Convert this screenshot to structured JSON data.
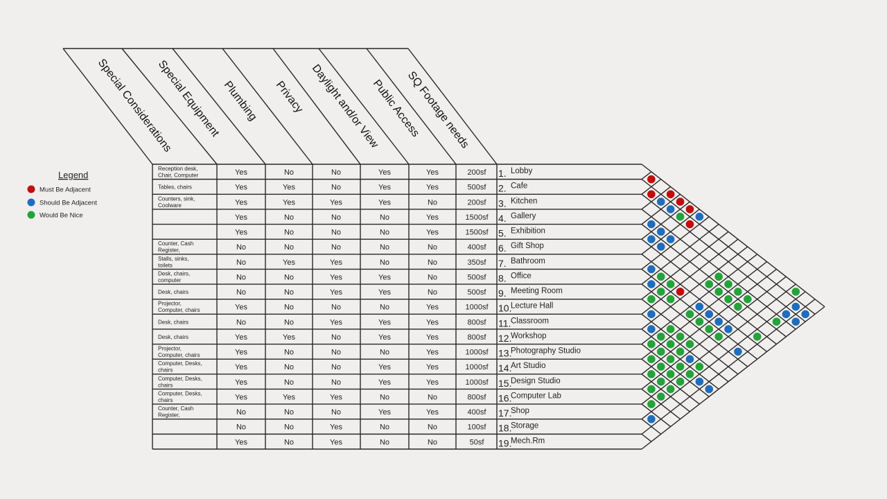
{
  "legend": {
    "title": "Legend",
    "items": [
      {
        "label": "Must Be Adjacent",
        "key": "must",
        "color": "#c00d0d"
      },
      {
        "label": "Should Be Adjacent",
        "key": "should",
        "color": "#1f6dbd"
      },
      {
        "label": "Would Be Nice",
        "key": "nice",
        "color": "#23a33a"
      }
    ]
  },
  "headers": [
    "Special Considerations",
    "Special Equipment",
    "Plumbing",
    "Privacy",
    "Daylight and/or View",
    "Public Access",
    "SQ Footage needs"
  ],
  "rows": [
    {
      "num": "1.",
      "name": "Lobby",
      "special": [
        "Reception desk,",
        "Chair, Computer"
      ],
      "values": [
        "Yes",
        "No",
        "No",
        "Yes",
        "Yes"
      ],
      "sqft": "200sf"
    },
    {
      "num": "2.",
      "name": "Cafe",
      "special": [
        "Tables, chairs"
      ],
      "values": [
        "Yes",
        "Yes",
        "No",
        "Yes",
        "Yes"
      ],
      "sqft": "500sf"
    },
    {
      "num": "3.",
      "name": "Kitchen",
      "special": [
        "Counters, sink,",
        "Coolware"
      ],
      "values": [
        "Yes",
        "Yes",
        "Yes",
        "Yes",
        "No"
      ],
      "sqft": "200sf"
    },
    {
      "num": "4.",
      "name": "Gallery",
      "special": [],
      "values": [
        "Yes",
        "No",
        "No",
        "No",
        "Yes"
      ],
      "sqft": "1500sf"
    },
    {
      "num": "5.",
      "name": "Exhibition",
      "special": [],
      "values": [
        "Yes",
        "No",
        "No",
        "No",
        "Yes"
      ],
      "sqft": "1500sf"
    },
    {
      "num": "6.",
      "name": "Gift Shop",
      "special": [
        "Counter, Cash",
        "Register,"
      ],
      "values": [
        "No",
        "No",
        "No",
        "No",
        "No"
      ],
      "sqft": "400sf"
    },
    {
      "num": "7.",
      "name": "Bathroom",
      "special": [
        "Stalls, sinks,",
        "toilets"
      ],
      "values": [
        "No",
        "Yes",
        "Yes",
        "No",
        "No"
      ],
      "sqft": "350sf"
    },
    {
      "num": "8.",
      "name": "Office",
      "special": [
        "Desk, chairs,",
        "computer"
      ],
      "values": [
        "No",
        "No",
        "Yes",
        "Yes",
        "No"
      ],
      "sqft": "500sf"
    },
    {
      "num": "9.",
      "name": "Meeting Room",
      "special": [
        "Desk, chairs"
      ],
      "values": [
        "No",
        "No",
        "Yes",
        "Yes",
        "No"
      ],
      "sqft": "500sf"
    },
    {
      "num": "10.",
      "name": "Lecture Hall",
      "special": [
        "Projector,",
        "Computer, chairs"
      ],
      "values": [
        "Yes",
        "No",
        "No",
        "No",
        "Yes"
      ],
      "sqft": "1000sf"
    },
    {
      "num": "11.",
      "name": "Classroom",
      "special": [
        "Desk, chairs"
      ],
      "values": [
        "No",
        "No",
        "Yes",
        "Yes",
        "Yes"
      ],
      "sqft": "800sf"
    },
    {
      "num": "12.",
      "name": "Workshop",
      "special": [
        "Desk, chairs"
      ],
      "values": [
        "Yes",
        "Yes",
        "No",
        "Yes",
        "Yes"
      ],
      "sqft": "800sf"
    },
    {
      "num": "13.",
      "name": "Photography Studio",
      "special": [
        "Projector,",
        "Computer, chairs"
      ],
      "values": [
        "Yes",
        "No",
        "No",
        "No",
        "Yes"
      ],
      "sqft": "1000sf"
    },
    {
      "num": "14.",
      "name": "Art Studio",
      "special": [
        "Computer, Desks,",
        "chairs"
      ],
      "values": [
        "Yes",
        "No",
        "No",
        "Yes",
        "Yes"
      ],
      "sqft": "1000sf"
    },
    {
      "num": "15.",
      "name": "Design Studio",
      "special": [
        "Computer, Desks,",
        "chairs"
      ],
      "values": [
        "Yes",
        "No",
        "No",
        "Yes",
        "Yes"
      ],
      "sqft": "1000sf"
    },
    {
      "num": "16.",
      "name": "Computer Lab",
      "special": [
        "Computer, Desks,",
        "chairs"
      ],
      "values": [
        "Yes",
        "Yes",
        "Yes",
        "No",
        "No"
      ],
      "sqft": "800sf"
    },
    {
      "num": "17.",
      "name": "Shop",
      "special": [
        "Counter, Cash",
        "Register,"
      ],
      "values": [
        "No",
        "No",
        "No",
        "Yes",
        "Yes"
      ],
      "sqft": "400sf"
    },
    {
      "num": "18.",
      "name": "Storage",
      "special": [],
      "values": [
        "No",
        "No",
        "Yes",
        "No",
        "No"
      ],
      "sqft": "100sf"
    },
    {
      "num": "19.",
      "name": "Mech.Rm",
      "special": [],
      "values": [
        "Yes",
        "No",
        "Yes",
        "No",
        "No"
      ],
      "sqft": "50sf"
    }
  ],
  "adjacency": [
    [
      1,
      2,
      "must"
    ],
    [
      2,
      3,
      "must"
    ],
    [
      1,
      4,
      "must"
    ],
    [
      2,
      4,
      "should"
    ],
    [
      1,
      5,
      "must"
    ],
    [
      2,
      5,
      "should"
    ],
    [
      1,
      6,
      "must"
    ],
    [
      2,
      6,
      "nice"
    ],
    [
      1,
      7,
      "should"
    ],
    [
      4,
      5,
      "should"
    ],
    [
      2,
      7,
      "must"
    ],
    [
      4,
      6,
      "should"
    ],
    [
      5,
      6,
      "should"
    ],
    [
      4,
      7,
      "should"
    ],
    [
      5,
      7,
      "should"
    ],
    [
      7,
      8,
      "should"
    ],
    [
      7,
      9,
      "nice"
    ],
    [
      8,
      9,
      "should"
    ],
    [
      7,
      10,
      "nice"
    ],
    [
      4,
      12,
      "nice"
    ],
    [
      5,
      12,
      "nice"
    ],
    [
      4,
      13,
      "nice"
    ],
    [
      8,
      10,
      "nice"
    ],
    [
      7,
      11,
      "must"
    ],
    [
      5,
      13,
      "nice"
    ],
    [
      4,
      14,
      "nice"
    ],
    [
      1,
      17,
      "nice"
    ],
    [
      9,
      10,
      "nice"
    ],
    [
      8,
      11,
      "nice"
    ],
    [
      5,
      14,
      "nice"
    ],
    [
      4,
      15,
      "nice"
    ],
    [
      5,
      15,
      "nice"
    ],
    [
      7,
      13,
      "should"
    ],
    [
      2,
      18,
      "should"
    ],
    [
      10,
      11,
      "should"
    ],
    [
      8,
      13,
      "nice"
    ],
    [
      7,
      14,
      "should"
    ],
    [
      3,
      18,
      "should"
    ],
    [
      2,
      19,
      "should"
    ],
    [
      8,
      14,
      "nice"
    ],
    [
      7,
      15,
      "should"
    ],
    [
      4,
      18,
      "nice"
    ],
    [
      3,
      19,
      "should"
    ],
    [
      11,
      12,
      "should"
    ],
    [
      10,
      13,
      "nice"
    ],
    [
      8,
      15,
      "nice"
    ],
    [
      7,
      16,
      "should"
    ],
    [
      11,
      13,
      "nice"
    ],
    [
      10,
      14,
      "nice"
    ],
    [
      8,
      16,
      "nice"
    ],
    [
      6,
      18,
      "nice"
    ],
    [
      12,
      13,
      "nice"
    ],
    [
      11,
      14,
      "nice"
    ],
    [
      10,
      15,
      "nice"
    ],
    [
      12,
      14,
      "nice"
    ],
    [
      11,
      15,
      "nice"
    ],
    [
      8,
      18,
      "should"
    ],
    [
      13,
      14,
      "nice"
    ],
    [
      12,
      15,
      "nice"
    ],
    [
      11,
      16,
      "should"
    ],
    [
      13,
      15,
      "nice"
    ],
    [
      12,
      16,
      "nice"
    ],
    [
      11,
      17,
      "nice"
    ],
    [
      14,
      15,
      "nice"
    ],
    [
      13,
      16,
      "nice"
    ],
    [
      12,
      17,
      "nice"
    ],
    [
      14,
      16,
      "nice"
    ],
    [
      13,
      17,
      "nice"
    ],
    [
      12,
      18,
      "should"
    ],
    [
      15,
      16,
      "nice"
    ],
    [
      14,
      17,
      "nice"
    ],
    [
      12,
      19,
      "should"
    ],
    [
      15,
      17,
      "nice"
    ],
    [
      16,
      17,
      "nice"
    ],
    [
      17,
      18,
      "should"
    ]
  ]
}
